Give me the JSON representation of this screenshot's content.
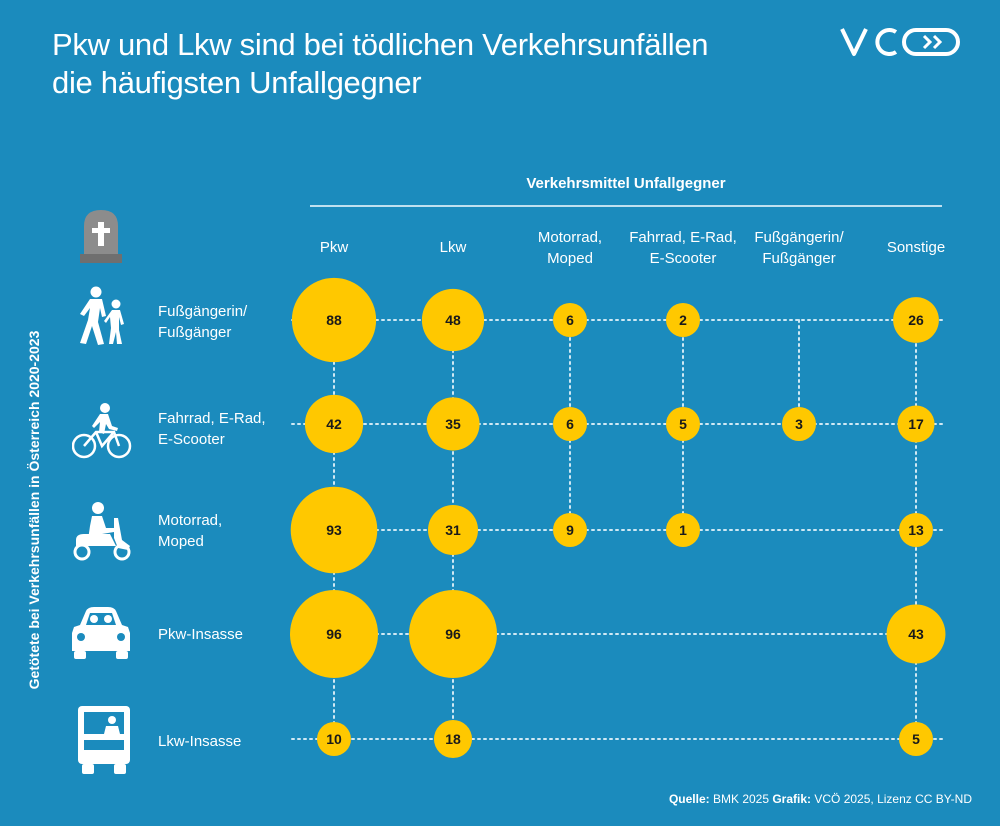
{
  "title_line1": "Pkw und Lkw sind bei tödlichen Verkehrsunfällen",
  "title_line2": "die häufigsten Unfallgegner",
  "logo_text": "VCÖ",
  "colors": {
    "background": "#1b8bbd",
    "bubble": "#ffc800",
    "text": "#ffffff",
    "value_text": "#1a1a1a"
  },
  "source": {
    "label1": "Quelle:",
    "text1": " BMK 2025 ",
    "label2": "Grafik:",
    "text2": " VCÖ 2025, Lizenz CC BY-ND"
  },
  "chart_data": {
    "type": "bubble matrix",
    "column_group_label": "Verkehrsmittel Unfallgegner",
    "y_axis_label": "Getötete bei Verkehrsunfällen in Österreich 2020-2023",
    "columns": [
      [
        "Pkw"
      ],
      [
        "Lkw"
      ],
      [
        "Motorrad,",
        "Moped"
      ],
      [
        "Fahrrad, E-Rad,",
        "E-Scooter"
      ],
      [
        "Fußgängerin/",
        "Fußgänger"
      ],
      [
        "Sonstige"
      ]
    ],
    "rows": [
      {
        "label": [
          "Fußgängerin/",
          "Fußgänger"
        ],
        "icon": "pedestrians-icon",
        "values": [
          88,
          48,
          6,
          2,
          null,
          26
        ]
      },
      {
        "label": [
          "Fahrrad, E-Rad,",
          "E-Scooter"
        ],
        "icon": "cyclist-icon",
        "values": [
          42,
          35,
          6,
          5,
          3,
          17
        ]
      },
      {
        "label": [
          "Motorrad,",
          "Moped"
        ],
        "icon": "scooter-rider-icon",
        "values": [
          93,
          31,
          9,
          1,
          null,
          13
        ]
      },
      {
        "label": [
          "Pkw-Insasse"
        ],
        "icon": "car-icon",
        "values": [
          96,
          96,
          null,
          null,
          null,
          43
        ]
      },
      {
        "label": [
          "Lkw-Insasse"
        ],
        "icon": "truck-icon",
        "values": [
          10,
          18,
          null,
          null,
          null,
          5
        ]
      }
    ],
    "header_icon": "gravestone-icon"
  }
}
